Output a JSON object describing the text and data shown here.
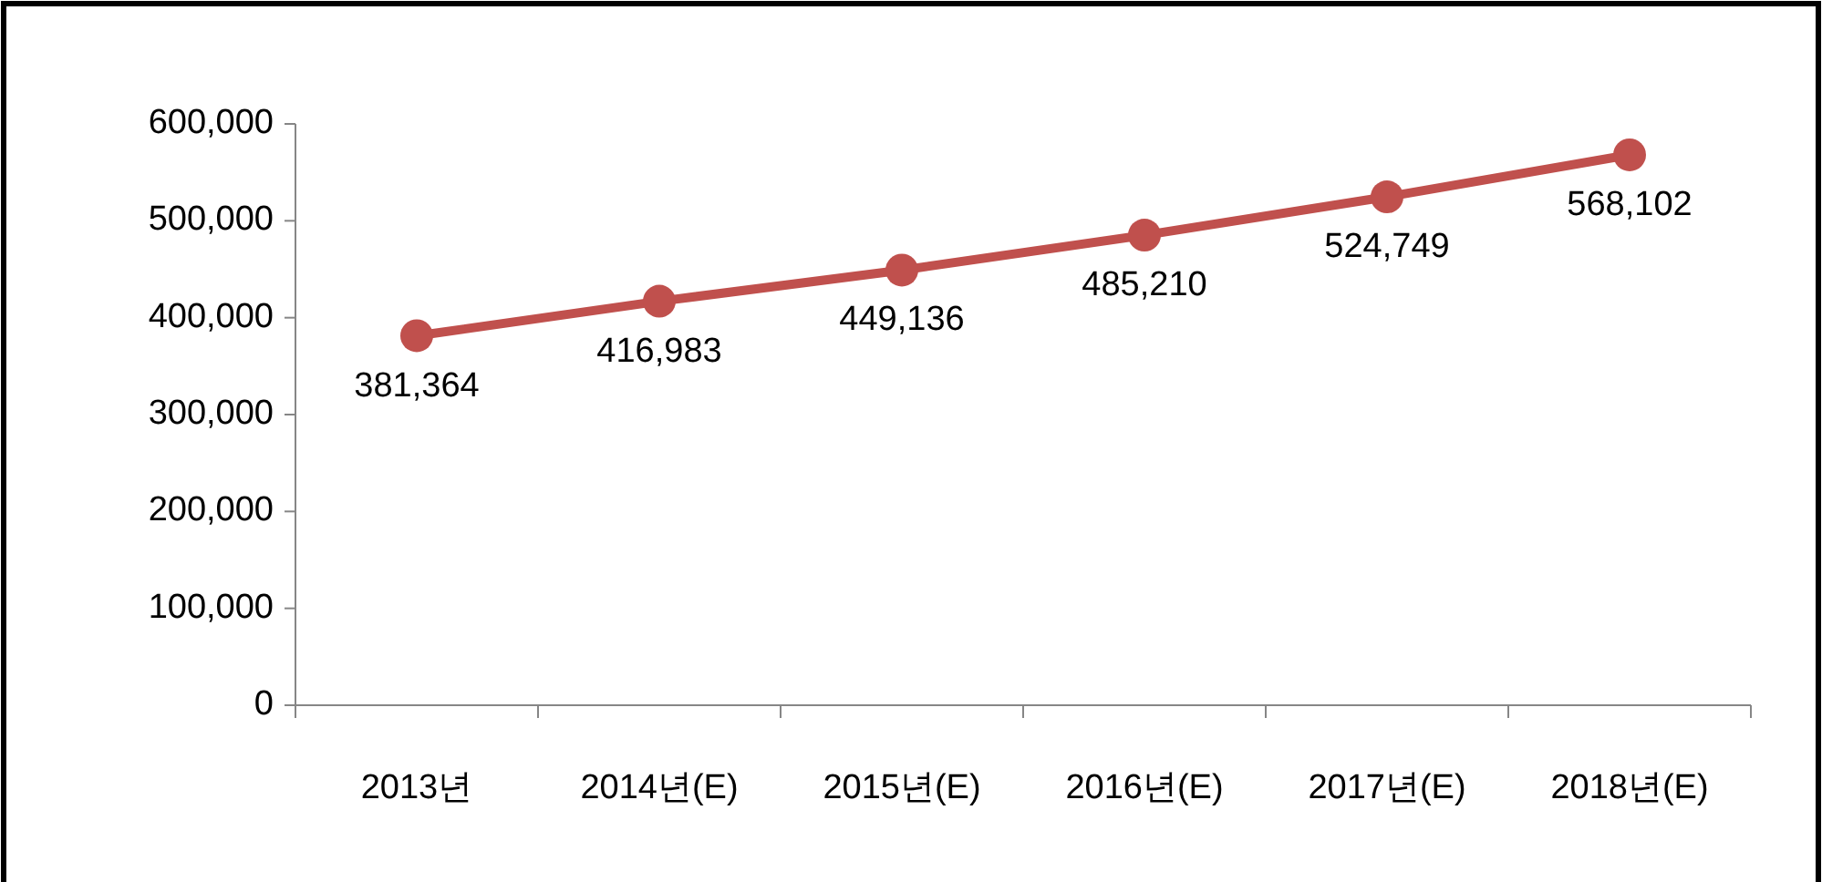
{
  "chart_data": {
    "type": "line",
    "categories": [
      "2013년",
      "2014년(E)",
      "2015년(E)",
      "2016년(E)",
      "2017년(E)",
      "2018년(E)"
    ],
    "series": [
      {
        "color": "#c0504d",
        "values": [
          381364,
          416983,
          449136,
          485210,
          524749,
          568102
        ],
        "value_labels": [
          "381,364",
          "416,983",
          "449,136",
          "485,210",
          "524,749",
          "568,102"
        ]
      }
    ],
    "ylim": [
      0,
      600000
    ],
    "yticks": [
      {
        "value": 0,
        "label": "0"
      },
      {
        "value": 100000,
        "label": "100,000"
      },
      {
        "value": 200000,
        "label": "200,000"
      },
      {
        "value": 300000,
        "label": "300,000"
      },
      {
        "value": 400000,
        "label": "400,000"
      },
      {
        "value": 500000,
        "label": "500,000"
      },
      {
        "value": 600000,
        "label": "600,000"
      }
    ],
    "marker": "circle"
  }
}
